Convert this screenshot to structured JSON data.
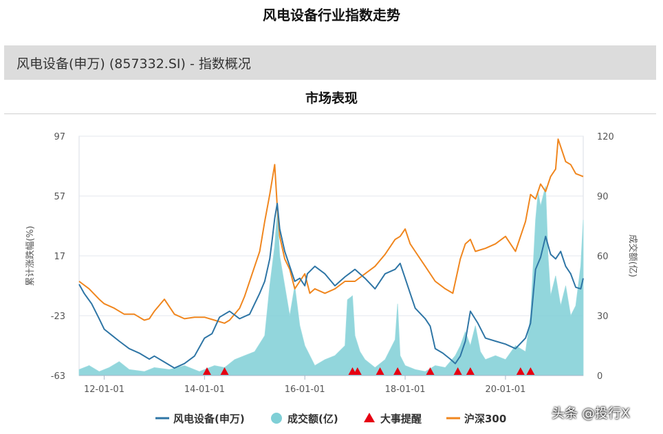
{
  "page": {
    "title": "风电设备行业指数走势",
    "section_title": "风电设备(申万) (857332.SI) - 指数概况",
    "panel_title": "市场表现",
    "watermark": "头条 @投行X"
  },
  "chart_data": {
    "type": "line",
    "title": "",
    "xlabel": "",
    "ylabel": "累计涨跌幅(%)",
    "y2label": "成交额(亿)",
    "ylim": [
      -63,
      97
    ],
    "y2lim": [
      0,
      120
    ],
    "yticks": [
      -63,
      -23,
      17,
      57,
      97
    ],
    "y2ticks": [
      0,
      30,
      60,
      90,
      120
    ],
    "xlim": [
      2011.5,
      2021.55
    ],
    "x_ticks": [
      {
        "x": 2012,
        "label": "12-01-01"
      },
      {
        "x": 2014,
        "label": "14-01-01"
      },
      {
        "x": 2016,
        "label": "16-01-01"
      },
      {
        "x": 2018,
        "label": "18-01-01"
      },
      {
        "x": 2020,
        "label": "20-01-01"
      }
    ],
    "grid": "horizontal",
    "legend_position": "bottom",
    "colors": {
      "sector": "#2e75a5",
      "volume": "#7fcfd6",
      "events": "#e60012",
      "csi300": "#f0861e"
    },
    "legend": [
      {
        "key": "sector",
        "label": "风电设备(申万)",
        "marker": "line"
      },
      {
        "key": "volume",
        "label": "成交额(亿)",
        "marker": "circle"
      },
      {
        "key": "events",
        "label": "大事提醒",
        "marker": "triangle"
      },
      {
        "key": "csi300",
        "label": "沪深300",
        "marker": "line"
      }
    ],
    "series": [
      {
        "name": "风电设备(申万)",
        "axis": "left",
        "x": [
          2011.5,
          2011.6,
          2011.75,
          2011.9,
          2012.0,
          2012.15,
          2012.3,
          2012.5,
          2012.7,
          2012.9,
          2013.0,
          2013.2,
          2013.4,
          2013.6,
          2013.8,
          2014.0,
          2014.15,
          2014.3,
          2014.5,
          2014.7,
          2014.9,
          2015.0,
          2015.1,
          2015.2,
          2015.3,
          2015.35,
          2015.4,
          2015.45,
          2015.5,
          2015.6,
          2015.7,
          2015.8,
          2015.9,
          2016.0,
          2016.05,
          2016.2,
          2016.4,
          2016.6,
          2016.8,
          2017.0,
          2017.2,
          2017.4,
          2017.6,
          2017.8,
          2017.9,
          2018.0,
          2018.1,
          2018.2,
          2018.4,
          2018.5,
          2018.6,
          2018.75,
          2018.9,
          2019.0,
          2019.1,
          2019.2,
          2019.3,
          2019.45,
          2019.6,
          2019.8,
          2020.0,
          2020.2,
          2020.4,
          2020.5,
          2020.55,
          2020.6,
          2020.7,
          2020.8,
          2020.9,
          2021.0,
          2021.1,
          2021.2,
          2021.3,
          2021.4,
          2021.5,
          2021.55
        ],
        "y": [
          -2,
          -8,
          -15,
          -25,
          -32,
          -36,
          -40,
          -45,
          -48,
          -52,
          -50,
          -54,
          -58,
          -55,
          -50,
          -38,
          -35,
          -24,
          -20,
          -25,
          -22,
          -15,
          -8,
          0,
          15,
          28,
          42,
          52,
          35,
          20,
          10,
          0,
          2,
          -3,
          5,
          10,
          5,
          -3,
          3,
          8,
          2,
          -5,
          5,
          8,
          12,
          2,
          -8,
          -18,
          -25,
          -30,
          -45,
          -48,
          -52,
          -55,
          -50,
          -40,
          -20,
          -28,
          -38,
          -40,
          -42,
          -45,
          -38,
          -28,
          -10,
          8,
          16,
          30,
          18,
          15,
          20,
          10,
          5,
          -4,
          -5,
          2
        ]
      },
      {
        "name": "沪深300",
        "axis": "left",
        "x": [
          2011.5,
          2011.7,
          2011.9,
          2012.0,
          2012.2,
          2012.4,
          2012.6,
          2012.8,
          2012.9,
          2013.0,
          2013.2,
          2013.4,
          2013.6,
          2013.8,
          2014.0,
          2014.2,
          2014.4,
          2014.5,
          2014.7,
          2014.8,
          2015.0,
          2015.1,
          2015.2,
          2015.3,
          2015.35,
          2015.4,
          2015.45,
          2015.5,
          2015.6,
          2015.7,
          2015.8,
          2015.9,
          2016.0,
          2016.1,
          2016.2,
          2016.4,
          2016.6,
          2016.8,
          2017.0,
          2017.2,
          2017.4,
          2017.6,
          2017.8,
          2017.9,
          2018.0,
          2018.1,
          2018.2,
          2018.4,
          2018.6,
          2018.8,
          2018.95,
          2019.1,
          2019.2,
          2019.3,
          2019.4,
          2019.6,
          2019.8,
          2020.0,
          2020.2,
          2020.4,
          2020.5,
          2020.6,
          2020.7,
          2020.8,
          2020.9,
          2021.0,
          2021.05,
          2021.1,
          2021.2,
          2021.3,
          2021.4,
          2021.55
        ],
        "y": [
          0,
          -5,
          -12,
          -15,
          -18,
          -22,
          -22,
          -26,
          -25,
          -20,
          -12,
          -22,
          -25,
          -24,
          -24,
          -26,
          -28,
          -26,
          -18,
          -10,
          10,
          20,
          40,
          58,
          68,
          78,
          50,
          30,
          15,
          8,
          -5,
          0,
          5,
          -8,
          -5,
          -8,
          -5,
          0,
          0,
          5,
          10,
          18,
          28,
          30,
          35,
          25,
          20,
          10,
          0,
          -5,
          -8,
          15,
          25,
          28,
          20,
          22,
          25,
          30,
          20,
          40,
          58,
          55,
          65,
          60,
          70,
          75,
          95,
          90,
          80,
          78,
          72,
          70
        ]
      },
      {
        "name": "成交额(亿)",
        "axis": "right",
        "type": "area",
        "x": [
          2011.5,
          2011.7,
          2011.9,
          2012.1,
          2012.3,
          2012.5,
          2012.8,
          2013.0,
          2013.3,
          2013.6,
          2013.9,
          2014.0,
          2014.2,
          2014.4,
          2014.6,
          2014.8,
          2015.0,
          2015.2,
          2015.3,
          2015.4,
          2015.45,
          2015.5,
          2015.6,
          2015.7,
          2015.8,
          2015.9,
          2016.0,
          2016.2,
          2016.4,
          2016.6,
          2016.8,
          2016.85,
          2016.95,
          2017.0,
          2017.1,
          2017.2,
          2017.4,
          2017.6,
          2017.8,
          2017.85,
          2017.9,
          2018.0,
          2018.2,
          2018.4,
          2018.6,
          2018.8,
          2019.0,
          2019.1,
          2019.2,
          2019.3,
          2019.4,
          2019.5,
          2019.6,
          2019.8,
          2020.0,
          2020.2,
          2020.4,
          2020.5,
          2020.6,
          2020.65,
          2020.7,
          2020.8,
          2020.85,
          2020.9,
          2021.0,
          2021.1,
          2021.2,
          2021.3,
          2021.4,
          2021.5,
          2021.55
        ],
        "y": [
          3,
          5,
          2,
          4,
          7,
          3,
          2,
          4,
          3,
          5,
          2,
          3,
          5,
          4,
          8,
          10,
          12,
          20,
          45,
          65,
          82,
          60,
          45,
          30,
          45,
          25,
          15,
          5,
          8,
          10,
          15,
          38,
          40,
          20,
          12,
          8,
          4,
          8,
          18,
          36,
          10,
          5,
          3,
          2,
          5,
          4,
          10,
          15,
          22,
          15,
          25,
          12,
          8,
          10,
          8,
          15,
          12,
          30,
          78,
          92,
          85,
          95,
          60,
          40,
          50,
          35,
          45,
          30,
          35,
          55,
          78
        ]
      }
    ],
    "events": [
      2014.05,
      2014.4,
      2016.95,
      2017.05,
      2017.5,
      2017.85,
      2018.5,
      2019.05,
      2019.3,
      2020.3,
      2020.5
    ]
  }
}
